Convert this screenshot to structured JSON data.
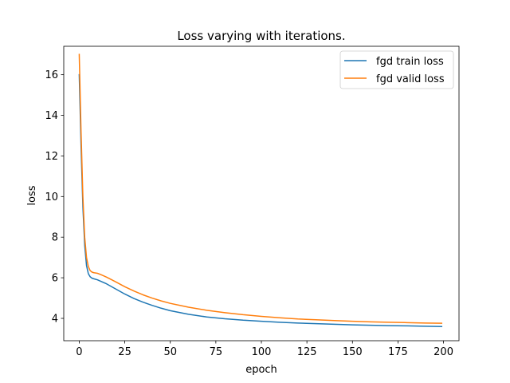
{
  "chart_data": {
    "type": "line",
    "title": "Loss varying with iterations.",
    "xlabel": "epoch",
    "ylabel": "loss",
    "xlim": [
      -8.5,
      208.5
    ],
    "ylim": [
      2.9,
      17.4
    ],
    "xticks": [
      0,
      25,
      50,
      75,
      100,
      125,
      150,
      175,
      200
    ],
    "yticks": [
      4,
      6,
      8,
      10,
      12,
      14,
      16
    ],
    "grid": false,
    "legend_position": "top-right",
    "colors": {
      "train": "#1f77b4",
      "valid": "#ff7f0e"
    },
    "series": [
      {
        "name": "fgd train loss",
        "color": "#1f77b4",
        "x": [
          0,
          1,
          2,
          3,
          4,
          5,
          6,
          7,
          8,
          10,
          12,
          15,
          20,
          25,
          30,
          35,
          40,
          45,
          50,
          60,
          70,
          80,
          90,
          100,
          110,
          120,
          130,
          140,
          150,
          160,
          170,
          180,
          190,
          199
        ],
        "y": [
          16.0,
          12.5,
          9.5,
          7.6,
          6.6,
          6.2,
          6.05,
          5.98,
          5.95,
          5.9,
          5.82,
          5.7,
          5.45,
          5.2,
          4.98,
          4.8,
          4.64,
          4.5,
          4.38,
          4.2,
          4.07,
          3.98,
          3.91,
          3.86,
          3.81,
          3.77,
          3.74,
          3.71,
          3.68,
          3.66,
          3.64,
          3.63,
          3.61,
          3.6
        ]
      },
      {
        "name": "fgd valid loss",
        "color": "#ff7f0e",
        "x": [
          0,
          1,
          2,
          3,
          4,
          5,
          6,
          7,
          8,
          10,
          12,
          15,
          20,
          25,
          30,
          35,
          40,
          45,
          50,
          60,
          70,
          80,
          90,
          100,
          110,
          120,
          130,
          140,
          150,
          160,
          170,
          180,
          190,
          199
        ],
        "y": [
          17.0,
          13.2,
          10.0,
          8.0,
          7.0,
          6.55,
          6.35,
          6.28,
          6.25,
          6.22,
          6.15,
          6.03,
          5.8,
          5.56,
          5.35,
          5.16,
          5.0,
          4.86,
          4.74,
          4.55,
          4.4,
          4.28,
          4.18,
          4.1,
          4.03,
          3.97,
          3.93,
          3.89,
          3.86,
          3.83,
          3.81,
          3.79,
          3.77,
          3.76
        ]
      }
    ]
  }
}
